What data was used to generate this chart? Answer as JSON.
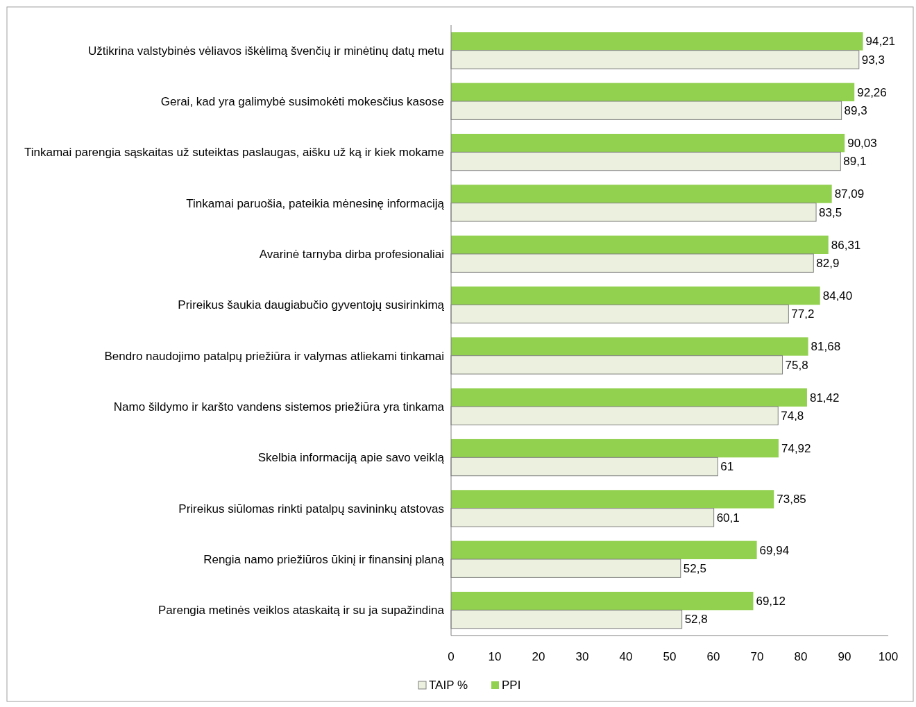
{
  "chart_data": {
    "type": "bar",
    "orientation": "horizontal",
    "categories": [
      "Užtikrina valstybinės vėliavos iškėlimą švenčių ir minėtinų datų metu",
      "Gerai, kad yra galimybė susimokėti mokesčius kasose",
      "Tinkamai parengia sąskaitas už suteiktas paslaugas, aišku už ką ir kiek mokame",
      "Tinkamai paruošia, pateikia mėnesinę informaciją",
      "Avarinė tarnyba dirba profesionaliai",
      "Prireikus šaukia daugiabučio gyventojų susirinkimą",
      "Bendro naudojimo patalpų priežiūra ir valymas atliekami tinkamai",
      "Namo šildymo ir karšto vandens sistemos priežiūra yra tinkama",
      "Skelbia informaciją apie savo veiklą",
      "Prireikus siūlomas rinkti patalpų savininkų atstovas",
      "Rengia namo priežiūros ūkinį ir finansinį planą",
      "Parengia metinės veiklos ataskaitą ir su ja supažindina"
    ],
    "series": [
      {
        "name": "PPI",
        "color": "#92d050",
        "values": [
          94.21,
          92.26,
          90.03,
          87.09,
          86.31,
          84.4,
          81.68,
          81.42,
          74.92,
          73.85,
          69.94,
          69.12
        ],
        "value_labels": [
          "94,21",
          "92,26",
          "90,03",
          "87,09",
          "86,31",
          "84,40",
          "81,68",
          "81,42",
          "74,92",
          "73,85",
          "69,94",
          "69,12"
        ]
      },
      {
        "name": "TAIP %",
        "color": "#ebf1de",
        "values": [
          93.3,
          89.3,
          89.1,
          83.5,
          82.9,
          77.2,
          75.8,
          74.8,
          61,
          60.1,
          52.5,
          52.8
        ],
        "value_labels": [
          "93,3",
          "89,3",
          "89,1",
          "83,5",
          "82,9",
          "77,2",
          "75,8",
          "74,8",
          "61",
          "60,1",
          "52,5",
          "52,8"
        ]
      }
    ],
    "xlim": [
      0,
      100
    ],
    "xticks": [
      0,
      10,
      20,
      30,
      40,
      50,
      60,
      70,
      80,
      90,
      100
    ],
    "grid": false,
    "legend": "bottom"
  }
}
